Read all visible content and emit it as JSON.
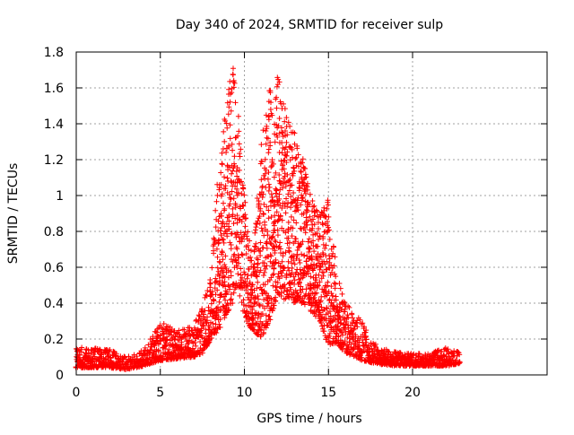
{
  "chart_data": {
    "type": "scatter",
    "title": "Day 340 of 2024, SRMTID for receiver sulp",
    "xlabel": "GPS time / hours",
    "ylabel": "SRMTID / TECUs",
    "xlim": [
      0,
      28
    ],
    "ylim": [
      0,
      1.8
    ],
    "xticks": [
      0,
      5,
      10,
      15,
      20
    ],
    "xtick_labels": [
      "0",
      "5",
      "10",
      "15",
      "20"
    ],
    "yticks": [
      0,
      0.2,
      0.4,
      0.6,
      0.8,
      1.0,
      1.2,
      1.4,
      1.6,
      1.8
    ],
    "ytick_labels": [
      "0",
      "0.2",
      "0.4",
      "0.6",
      "0.8",
      "1",
      "1.2",
      "1.4",
      "1.6",
      "1.8"
    ],
    "grid": true,
    "marker": "+",
    "series_color": "#ff0000",
    "envelope": {
      "x": [
        0,
        1,
        2,
        3,
        4,
        5,
        6,
        7,
        7.5,
        8,
        8.5,
        9,
        9.3,
        9.6,
        10,
        10.5,
        11,
        11.5,
        12,
        12.5,
        13,
        13.5,
        14,
        14.5,
        15,
        15.5,
        16,
        16.5,
        17,
        17.5,
        18,
        19,
        20,
        21,
        22,
        22.8
      ],
      "low": [
        0.04,
        0.04,
        0.04,
        0.03,
        0.05,
        0.08,
        0.09,
        0.1,
        0.12,
        0.2,
        0.25,
        0.35,
        0.4,
        0.5,
        0.3,
        0.25,
        0.2,
        0.3,
        0.45,
        0.4,
        0.4,
        0.4,
        0.35,
        0.3,
        0.15,
        0.18,
        0.12,
        0.1,
        0.08,
        0.07,
        0.06,
        0.05,
        0.05,
        0.05,
        0.05,
        0.06
      ],
      "high": [
        0.16,
        0.15,
        0.14,
        0.1,
        0.14,
        0.3,
        0.25,
        0.28,
        0.4,
        0.55,
        1.2,
        1.55,
        1.75,
        1.5,
        1.0,
        0.65,
        1.3,
        1.6,
        1.68,
        1.45,
        1.35,
        1.2,
        0.98,
        0.9,
        1.02,
        0.6,
        0.4,
        0.35,
        0.3,
        0.2,
        0.15,
        0.13,
        0.12,
        0.12,
        0.16,
        0.13
      ],
      "density": [
        20,
        20,
        20,
        12,
        18,
        25,
        25,
        25,
        25,
        30,
        40,
        45,
        40,
        35,
        30,
        35,
        40,
        45,
        45,
        40,
        40,
        40,
        40,
        35,
        35,
        30,
        25,
        22,
        20,
        18,
        18,
        18,
        18,
        18,
        18,
        12
      ]
    }
  }
}
